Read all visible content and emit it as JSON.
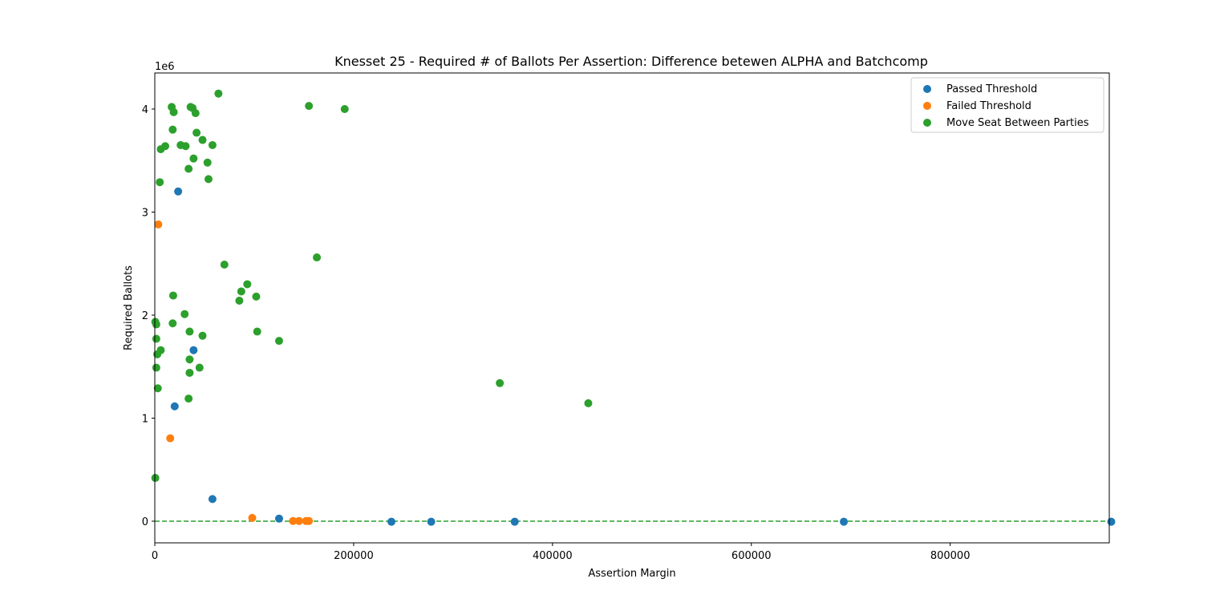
{
  "chart_data": {
    "type": "scatter",
    "title": "Knesset 25 - Required # of Ballots Per Assertion: Difference betewen ALPHA and Batchcomp",
    "xlabel": "Assertion Margin",
    "ylabel": "Required Ballots",
    "y_multiplier": "1e6",
    "xlim": [
      0,
      960000
    ],
    "ylim": [
      -210000,
      4350000
    ],
    "x_ticks": [
      0,
      200000,
      400000,
      600000,
      800000
    ],
    "x_tick_labels": [
      "0",
      "200000",
      "400000",
      "600000",
      "800000"
    ],
    "y_ticks": [
      0,
      1000000,
      2000000,
      3000000,
      4000000
    ],
    "y_tick_labels": [
      "0",
      "1",
      "2",
      "3",
      "4"
    ],
    "grid": false,
    "legend_position": "top-right",
    "reference_line": {
      "y": 0,
      "style": "dashed",
      "color": "#2ca02c"
    },
    "series": [
      {
        "name": "Passed Threshold",
        "color": "#1f77b4",
        "points": [
          [
            23500,
            3200000
          ],
          [
            39000,
            1660000
          ],
          [
            20000,
            1115000
          ],
          [
            58000,
            215000
          ],
          [
            125000,
            25000
          ],
          [
            238000,
            -5000
          ],
          [
            278000,
            -5000
          ],
          [
            362000,
            -5000
          ],
          [
            693000,
            -5000
          ],
          [
            962000,
            -5000
          ]
        ]
      },
      {
        "name": "Failed Threshold",
        "color": "#ff7f0e",
        "points": [
          [
            3500,
            2880000
          ],
          [
            15500,
            805000
          ],
          [
            98000,
            32000
          ],
          [
            139000,
            2000
          ],
          [
            145000,
            2000
          ],
          [
            152000,
            2000
          ],
          [
            155000,
            2000
          ]
        ]
      },
      {
        "name": "Move Seat Between Parties",
        "color": "#2ca02c",
        "points": [
          [
            64000,
            4150000
          ],
          [
            17000,
            4020000
          ],
          [
            19000,
            3970000
          ],
          [
            36000,
            4020000
          ],
          [
            38000,
            4010000
          ],
          [
            41000,
            3960000
          ],
          [
            155000,
            4030000
          ],
          [
            191000,
            4000000
          ],
          [
            18000,
            3800000
          ],
          [
            42000,
            3770000
          ],
          [
            48000,
            3700000
          ],
          [
            58000,
            3650000
          ],
          [
            26000,
            3650000
          ],
          [
            31000,
            3640000
          ],
          [
            10500,
            3640000
          ],
          [
            6000,
            3610000
          ],
          [
            39000,
            3520000
          ],
          [
            53000,
            3480000
          ],
          [
            34000,
            3420000
          ],
          [
            54000,
            3320000
          ],
          [
            5000,
            3290000
          ],
          [
            70000,
            2490000
          ],
          [
            163000,
            2560000
          ],
          [
            93000,
            2300000
          ],
          [
            87000,
            2230000
          ],
          [
            102000,
            2180000
          ],
          [
            85000,
            2140000
          ],
          [
            18500,
            2190000
          ],
          [
            30000,
            2010000
          ],
          [
            18000,
            1920000
          ],
          [
            500,
            1935000
          ],
          [
            1500,
            1910000
          ],
          [
            35000,
            1840000
          ],
          [
            103000,
            1840000
          ],
          [
            48000,
            1800000
          ],
          [
            125000,
            1750000
          ],
          [
            1500,
            1770000
          ],
          [
            6000,
            1660000
          ],
          [
            2500,
            1620000
          ],
          [
            35000,
            1570000
          ],
          [
            45000,
            1490000
          ],
          [
            1500,
            1490000
          ],
          [
            35000,
            1440000
          ],
          [
            347000,
            1340000
          ],
          [
            3000,
            1290000
          ],
          [
            34000,
            1190000
          ],
          [
            436000,
            1145000
          ],
          [
            500,
            420000
          ]
        ]
      }
    ]
  }
}
